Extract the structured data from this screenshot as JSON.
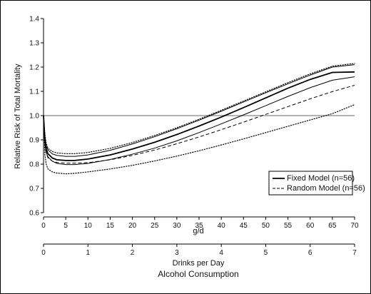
{
  "chart_data": {
    "type": "line",
    "ylabel": "Relative Risk of Total Mortality",
    "xlabel": "g/d",
    "x2label": "Drinks per Day",
    "footer_label": "Alcohol Consumption",
    "xlim": [
      0,
      70
    ],
    "ylim": [
      0.6,
      1.4
    ],
    "x_ticks": [
      0,
      5,
      10,
      15,
      20,
      25,
      30,
      35,
      40,
      45,
      50,
      55,
      60,
      65,
      70
    ],
    "y_ticks": [
      "0.6",
      "0.7",
      "0.8",
      "0.9",
      "1.0",
      "1.1",
      "1.2",
      "1.3",
      "1.4"
    ],
    "x2lim": [
      0,
      7
    ],
    "x2_ticks": [
      0,
      1,
      2,
      3,
      4,
      5,
      6,
      7
    ],
    "reference_line": 1.0,
    "legend": {
      "placement": "bottom-right",
      "entries": [
        {
          "label": "Fixed Model (n=56)",
          "style": "solid"
        },
        {
          "label": "Random Model (n=56)",
          "style": "dashed"
        }
      ]
    },
    "series": [
      {
        "name": "Fixed Model (n=56)",
        "style": "solid",
        "width": 1.8,
        "color": "#000000",
        "points": [
          [
            0,
            1.0
          ],
          [
            0.3,
            0.9
          ],
          [
            0.6,
            0.862
          ],
          [
            1,
            0.843
          ],
          [
            2,
            0.825
          ],
          [
            3,
            0.818
          ],
          [
            5,
            0.815
          ],
          [
            7,
            0.815
          ],
          [
            10,
            0.821
          ],
          [
            15,
            0.838
          ],
          [
            20,
            0.862
          ],
          [
            25,
            0.89
          ],
          [
            30,
            0.922
          ],
          [
            35,
            0.957
          ],
          [
            40,
            0.994
          ],
          [
            45,
            1.033
          ],
          [
            50,
            1.073
          ],
          [
            55,
            1.113
          ],
          [
            60,
            1.149
          ],
          [
            65,
            1.178
          ],
          [
            70,
            1.18
          ]
        ]
      },
      {
        "name": "Random Model (n=56)",
        "style": "dashed",
        "width": 1.0,
        "color": "#000000",
        "points": [
          [
            0,
            1.0
          ],
          [
            0.3,
            0.88
          ],
          [
            0.6,
            0.845
          ],
          [
            1,
            0.826
          ],
          [
            2,
            0.812
          ],
          [
            3,
            0.807
          ],
          [
            5,
            0.804
          ],
          [
            7,
            0.804
          ],
          [
            10,
            0.806
          ],
          [
            15,
            0.818
          ],
          [
            20,
            0.836
          ],
          [
            25,
            0.858
          ],
          [
            30,
            0.884
          ],
          [
            35,
            0.912
          ],
          [
            40,
            0.942
          ],
          [
            45,
            0.973
          ],
          [
            50,
            1.005
          ],
          [
            55,
            1.037
          ],
          [
            60,
            1.069
          ],
          [
            65,
            1.099
          ],
          [
            70,
            1.125
          ]
        ]
      },
      {
        "name": "",
        "style": "solid",
        "width": 1.0,
        "color": "#000000",
        "points": [
          [
            0,
            1.0
          ],
          [
            0.3,
            0.915
          ],
          [
            0.6,
            0.875
          ],
          [
            1,
            0.858
          ],
          [
            2,
            0.842
          ],
          [
            3,
            0.836
          ],
          [
            5,
            0.832
          ],
          [
            7,
            0.832
          ],
          [
            10,
            0.838
          ],
          [
            15,
            0.857
          ],
          [
            20,
            0.883
          ],
          [
            25,
            0.913
          ],
          [
            30,
            0.946
          ],
          [
            35,
            0.981
          ],
          [
            40,
            1.018
          ],
          [
            45,
            1.056
          ],
          [
            50,
            1.094
          ],
          [
            55,
            1.131
          ],
          [
            60,
            1.167
          ],
          [
            65,
            1.2
          ],
          [
            70,
            1.21
          ]
        ]
      },
      {
        "name": "",
        "style": "solid",
        "width": 1.0,
        "color": "#000000",
        "points": [
          [
            0,
            1.0
          ],
          [
            0.3,
            0.885
          ],
          [
            0.6,
            0.848
          ],
          [
            1,
            0.83
          ],
          [
            2,
            0.812
          ],
          [
            3,
            0.803
          ],
          [
            5,
            0.798
          ],
          [
            7,
            0.798
          ],
          [
            10,
            0.803
          ],
          [
            15,
            0.819
          ],
          [
            20,
            0.841
          ],
          [
            25,
            0.866
          ],
          [
            30,
            0.896
          ],
          [
            35,
            0.93
          ],
          [
            40,
            0.966
          ],
          [
            45,
            1.003
          ],
          [
            50,
            1.041
          ],
          [
            55,
            1.079
          ],
          [
            60,
            1.115
          ],
          [
            65,
            1.146
          ],
          [
            70,
            1.16
          ]
        ]
      },
      {
        "name": "",
        "style": "dotted",
        "width": 1.2,
        "color": "#000000",
        "points": [
          [
            0,
            1.0
          ],
          [
            0.3,
            0.925
          ],
          [
            0.6,
            0.885
          ],
          [
            1,
            0.865
          ],
          [
            2,
            0.852
          ],
          [
            3,
            0.846
          ],
          [
            5,
            0.843
          ],
          [
            7,
            0.843
          ],
          [
            10,
            0.848
          ],
          [
            15,
            0.865
          ],
          [
            20,
            0.889
          ],
          [
            25,
            0.918
          ],
          [
            30,
            0.95
          ],
          [
            35,
            0.985
          ],
          [
            40,
            1.022
          ],
          [
            45,
            1.06
          ],
          [
            50,
            1.098
          ],
          [
            55,
            1.136
          ],
          [
            60,
            1.172
          ],
          [
            65,
            1.204
          ],
          [
            70,
            1.215
          ]
        ]
      },
      {
        "name": "",
        "style": "dotted",
        "width": 1.2,
        "color": "#000000",
        "points": [
          [
            0,
            1.0
          ],
          [
            0.3,
            0.84
          ],
          [
            0.6,
            0.8
          ],
          [
            1,
            0.78
          ],
          [
            2,
            0.768
          ],
          [
            3,
            0.763
          ],
          [
            5,
            0.76
          ],
          [
            7,
            0.762
          ],
          [
            10,
            0.768
          ],
          [
            15,
            0.78
          ],
          [
            20,
            0.795
          ],
          [
            25,
            0.813
          ],
          [
            30,
            0.833
          ],
          [
            35,
            0.855
          ],
          [
            40,
            0.879
          ],
          [
            45,
            0.904
          ],
          [
            50,
            0.93
          ],
          [
            55,
            0.956
          ],
          [
            60,
            0.982
          ],
          [
            65,
            1.008
          ],
          [
            70,
            1.045
          ]
        ]
      }
    ]
  }
}
